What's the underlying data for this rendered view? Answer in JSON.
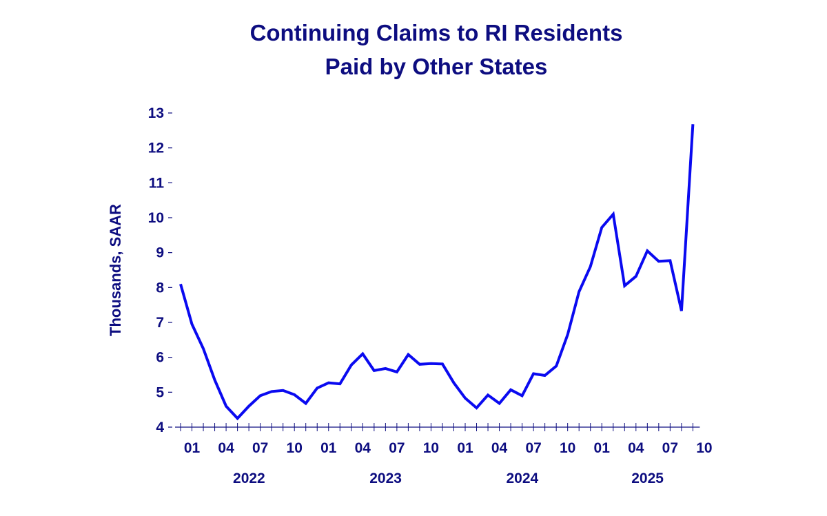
{
  "chart_data": {
    "type": "line",
    "title_line1": "Continuing Claims to RI Residents",
    "title_line2": "Paid by Other States",
    "ylabel": "Thousands, SAAR",
    "xlabel": "",
    "ylim": [
      4,
      13
    ],
    "yticks": [
      4,
      5,
      6,
      7,
      8,
      9,
      10,
      11,
      12,
      13
    ],
    "grid": false,
    "line_color": "#0a0af0",
    "text_color": "#0d0d80",
    "month_tick_labels": [
      "01",
      "04",
      "07",
      "10",
      "01",
      "04",
      "07",
      "10",
      "01",
      "04",
      "07",
      "10",
      "01",
      "04",
      "07",
      "10"
    ],
    "year_labels": [
      "2022",
      "2023",
      "2024",
      "2025"
    ],
    "x_start": "2021-12",
    "series": [
      {
        "x": [
          "2021-12",
          "2022-01",
          "2022-02",
          "2022-03",
          "2022-04",
          "2022-05",
          "2022-06",
          "2022-07",
          "2022-08",
          "2022-09",
          "2022-10",
          "2022-11",
          "2022-12",
          "2023-01",
          "2023-02",
          "2023-03",
          "2023-04",
          "2023-05",
          "2023-06",
          "2023-07",
          "2023-08",
          "2023-09",
          "2023-10",
          "2023-11",
          "2023-12",
          "2024-01",
          "2024-02",
          "2024-03",
          "2024-04",
          "2024-05",
          "2024-06",
          "2024-07",
          "2024-08",
          "2024-09",
          "2024-10",
          "2024-11",
          "2024-12",
          "2025-01",
          "2025-02",
          "2025-03",
          "2025-04",
          "2025-05",
          "2025-06",
          "2025-07",
          "2025-08",
          "2025-09"
        ],
        "values": [
          8.1,
          6.95,
          6.25,
          5.35,
          4.6,
          4.25,
          4.6,
          4.9,
          5.02,
          5.05,
          4.93,
          4.68,
          5.12,
          5.27,
          5.24,
          5.78,
          6.1,
          5.62,
          5.68,
          5.58,
          6.08,
          5.8,
          5.82,
          5.81,
          5.27,
          4.83,
          4.55,
          4.92,
          4.68,
          5.07,
          4.9,
          5.53,
          5.48,
          5.75,
          6.65,
          7.88,
          8.6,
          9.72,
          10.1,
          8.05,
          8.32,
          9.05,
          8.75,
          8.77,
          7.33,
          12.68
        ]
      }
    ]
  }
}
